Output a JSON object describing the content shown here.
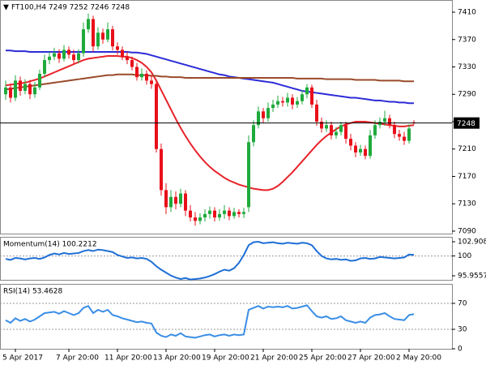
{
  "chart_data": [
    {
      "type": "candlestick",
      "title": "FT100,H4 7249 7252 7246 7248",
      "categories": [
        null,
        null,
        "5 Apr 2017",
        null,
        null,
        null,
        null,
        null,
        null,
        null,
        null,
        null,
        null,
        "7 Apr 20:00",
        null,
        null,
        null,
        null,
        null,
        null,
        null,
        null,
        null,
        "11 Apr 20:00",
        null,
        null,
        null,
        null,
        null,
        null,
        null,
        null,
        null,
        "13 Apr 20:00",
        null,
        null,
        null,
        null,
        null,
        null,
        null,
        null,
        null,
        "19 Apr 20:00",
        null,
        null,
        null,
        null,
        null,
        null,
        null,
        null,
        null,
        "21 Apr 20:00",
        null,
        null,
        null,
        null,
        null,
        null,
        null,
        null,
        null,
        "25 Apr 20:00",
        null,
        null,
        null,
        null,
        null,
        null,
        null,
        null,
        null,
        "27 Apr 20:00",
        null,
        null,
        null,
        null,
        null,
        null,
        null,
        null,
        null,
        "2 May 20:00",
        null
      ],
      "open": [
        7290,
        7300,
        7285,
        7310,
        7295,
        7305,
        7290,
        7300,
        7320,
        7340,
        7345,
        7350,
        7342,
        7355,
        7348,
        7340,
        7350,
        7385,
        7400,
        7360,
        7380,
        7370,
        7385,
        7360,
        7355,
        7345,
        7340,
        7330,
        7315,
        7320,
        7310,
        7305,
        7210,
        7150,
        7125,
        7140,
        7130,
        7145,
        7120,
        7110,
        7105,
        7110,
        7115,
        7120,
        7110,
        7115,
        7120,
        7112,
        7118,
        7115,
        7125,
        7220,
        7245,
        7265,
        7255,
        7270,
        7275,
        7280,
        7278,
        7285,
        7275,
        7280,
        7290,
        7300,
        7275,
        7250,
        7240,
        7245,
        7230,
        7235,
        7245,
        7225,
        7215,
        7205,
        7210,
        7200,
        7230,
        7245,
        7250,
        7255,
        7245,
        7232,
        7228,
        7222,
        7249
      ],
      "high": [
        7310,
        7306,
        7318,
        7316,
        7312,
        7311,
        7308,
        7326,
        7348,
        7352,
        7358,
        7356,
        7362,
        7360,
        7355,
        7356,
        7395,
        7408,
        7405,
        7388,
        7386,
        7395,
        7390,
        7366,
        7360,
        7352,
        7345,
        7336,
        7328,
        7325,
        7318,
        7312,
        7218,
        7160,
        7150,
        7148,
        7152,
        7150,
        7128,
        7118,
        7116,
        7122,
        7126,
        7125,
        7122,
        7128,
        7125,
        7124,
        7122,
        7124,
        7230,
        7252,
        7272,
        7270,
        7278,
        7282,
        7288,
        7286,
        7292,
        7290,
        7286,
        7296,
        7305,
        7304,
        7282,
        7256,
        7252,
        7250,
        7242,
        7250,
        7250,
        7232,
        7220,
        7216,
        7215,
        7238,
        7252,
        7256,
        7266,
        7260,
        7250,
        7238,
        7235,
        7246,
        7252
      ],
      "low": [
        7282,
        7278,
        7280,
        7288,
        7290,
        7283,
        7285,
        7296,
        7315,
        7334,
        7340,
        7336,
        7338,
        7342,
        7334,
        7335,
        7345,
        7380,
        7352,
        7355,
        7364,
        7366,
        7354,
        7348,
        7340,
        7334,
        7325,
        7310,
        7310,
        7304,
        7298,
        7205,
        7142,
        7115,
        7118,
        7122,
        7125,
        7112,
        7104,
        7098,
        7100,
        7104,
        7108,
        7104,
        7105,
        7108,
        7106,
        7108,
        7110,
        7109,
        7118,
        7214,
        7240,
        7248,
        7250,
        7264,
        7270,
        7272,
        7272,
        7268,
        7270,
        7275,
        7284,
        7270,
        7244,
        7234,
        7235,
        7224,
        7225,
        7230,
        7218,
        7208,
        7198,
        7200,
        7195,
        7196,
        7225,
        7240,
        7244,
        7240,
        7226,
        7222,
        7216,
        7218,
        7246
      ],
      "close": [
        7300,
        7285,
        7310,
        7295,
        7305,
        7290,
        7300,
        7320,
        7340,
        7345,
        7350,
        7342,
        7355,
        7348,
        7340,
        7350,
        7385,
        7400,
        7360,
        7380,
        7370,
        7385,
        7360,
        7355,
        7345,
        7340,
        7330,
        7315,
        7320,
        7310,
        7305,
        7210,
        7150,
        7125,
        7140,
        7130,
        7145,
        7120,
        7110,
        7105,
        7110,
        7115,
        7120,
        7110,
        7115,
        7120,
        7112,
        7118,
        7115,
        7118,
        7220,
        7245,
        7265,
        7255,
        7270,
        7275,
        7280,
        7278,
        7285,
        7275,
        7280,
        7290,
        7300,
        7275,
        7250,
        7240,
        7245,
        7230,
        7235,
        7245,
        7225,
        7215,
        7205,
        7210,
        7200,
        7230,
        7245,
        7250,
        7255,
        7245,
        7232,
        7228,
        7222,
        7240,
        7248
      ],
      "up_color": "#1faa3c",
      "down_color": "#e8101a",
      "lines": [
        {
          "color": "#e8232a",
          "values": [
            7303,
            7304,
            7305,
            7306,
            7307,
            7309,
            7311,
            7313,
            7316,
            7319,
            7322,
            7325,
            7328,
            7331,
            7334,
            7337,
            7340,
            7342,
            7343,
            7344,
            7345,
            7346,
            7346,
            7346,
            7345,
            7345,
            7343,
            7340,
            7336,
            7330,
            7322,
            7310,
            7296,
            7282,
            7268,
            7254,
            7241,
            7229,
            7218,
            7208,
            7199,
            7191,
            7184,
            7178,
            7173,
            7168,
            7164,
            7161,
            7158,
            7156,
            7154,
            7152,
            7151,
            7150,
            7150,
            7152,
            7156,
            7162,
            7169,
            7176,
            7184,
            7192,
            7200,
            7208,
            7216,
            7223,
            7229,
            7234,
            7239,
            7243,
            7246,
            7248,
            7250,
            7250,
            7250,
            7249,
            7248,
            7247,
            7246,
            7245,
            7244,
            7243,
            7243,
            7244,
            7245
          ]
        },
        {
          "color": "#2b2bd6",
          "values": [
            7354,
            7354,
            7353,
            7353,
            7353,
            7352,
            7352,
            7352,
            7352,
            7352,
            7352,
            7352,
            7352,
            7352,
            7352,
            7352,
            7352,
            7352,
            7352,
            7352,
            7352,
            7352,
            7352,
            7352,
            7352,
            7352,
            7351,
            7351,
            7350,
            7349,
            7347,
            7345,
            7343,
            7341,
            7339,
            7337,
            7335,
            7333,
            7331,
            7329,
            7327,
            7325,
            7323,
            7321,
            7319,
            7318,
            7316,
            7315,
            7314,
            7313,
            7312,
            7311,
            7310,
            7309,
            7308,
            7307,
            7305,
            7303,
            7301,
            7299,
            7297,
            7295,
            7294,
            7293,
            7292,
            7291,
            7290,
            7289,
            7288,
            7287,
            7286,
            7285,
            7285,
            7284,
            7283,
            7282,
            7281,
            7281,
            7280,
            7279,
            7279,
            7278,
            7278,
            7277,
            7277
          ]
        },
        {
          "color": "#9a4a2a",
          "values": [
            7297,
            7298,
            7299,
            7300,
            7301,
            7302,
            7303,
            7304,
            7305,
            7306,
            7307,
            7308,
            7309,
            7310,
            7311,
            7312,
            7313,
            7314,
            7315,
            7316,
            7317,
            7318,
            7318,
            7319,
            7319,
            7319,
            7319,
            7318,
            7318,
            7318,
            7317,
            7317,
            7316,
            7316,
            7315,
            7315,
            7315,
            7314,
            7314,
            7314,
            7314,
            7314,
            7314,
            7314,
            7314,
            7314,
            7314,
            7314,
            7314,
            7314,
            7314,
            7314,
            7314,
            7314,
            7314,
            7314,
            7314,
            7314,
            7314,
            7314,
            7313,
            7313,
            7313,
            7313,
            7313,
            7313,
            7312,
            7312,
            7312,
            7312,
            7312,
            7312,
            7311,
            7311,
            7311,
            7311,
            7311,
            7310,
            7310,
            7310,
            7310,
            7310,
            7309,
            7309,
            7309
          ]
        }
      ],
      "last_price": 7248,
      "ylim": [
        7086.4,
        7427.8
      ],
      "yticks": [
        7410,
        7370,
        7330,
        7290,
        7250,
        7210,
        7170,
        7130,
        7090
      ]
    },
    {
      "type": "line",
      "title": "Momentum(14) 100.2212",
      "color": "#1f6fd6",
      "values": [
        99.4,
        99.2,
        99.6,
        99.5,
        99.3,
        99.5,
        99.6,
        99.4,
        99.7,
        100.2,
        100.5,
        100.3,
        100.6,
        100.4,
        100.5,
        100.6,
        101.0,
        101.2,
        101.0,
        101.3,
        101.2,
        101.0,
        100.8,
        100.2,
        99.9,
        99.6,
        99.7,
        99.5,
        99.6,
        99.4,
        98.8,
        97.9,
        97.2,
        96.6,
        96.0,
        95.6,
        95.3,
        95.5,
        95.2,
        95.3,
        95.4,
        95.6,
        95.9,
        96.3,
        96.8,
        97.2,
        97.0,
        97.5,
        98.6,
        100.2,
        102.2,
        102.8,
        102.9,
        102.6,
        102.7,
        102.8,
        102.6,
        102.5,
        102.7,
        102.6,
        102.5,
        102.7,
        102.6,
        102.2,
        101.0,
        100.0,
        99.5,
        99.3,
        99.4,
        99.2,
        99.3,
        99.0,
        99.1,
        99.5,
        99.6,
        99.4,
        99.5,
        99.8,
        99.7,
        99.6,
        99.5,
        99.6,
        99.7,
        100.3,
        100.2212
      ],
      "levels": [
        100
      ],
      "ylim": [
        95.13,
        103.9
      ],
      "yticks": [
        102.9083,
        100,
        95.9557
      ]
    },
    {
      "type": "line",
      "title": "RSI(14) 53.4628",
      "color": "#3a8ee6",
      "values": [
        44,
        40,
        47,
        43,
        46,
        42,
        45,
        50,
        55,
        56,
        57,
        54,
        58,
        55,
        52,
        55,
        63,
        66,
        55,
        60,
        57,
        60,
        52,
        50,
        47,
        45,
        43,
        41,
        42,
        40,
        39,
        25,
        20,
        18,
        22,
        20,
        24,
        19,
        18,
        17,
        19,
        21,
        22,
        19,
        21,
        22,
        20,
        22,
        21,
        22,
        60,
        63,
        66,
        62,
        65,
        64,
        65,
        64,
        66,
        62,
        63,
        65,
        67,
        58,
        50,
        48,
        50,
        46,
        47,
        50,
        44,
        42,
        40,
        42,
        40,
        48,
        52,
        53,
        55,
        50,
        46,
        45,
        44,
        52,
        53.4628
      ],
      "levels": [
        30,
        70
      ],
      "ylim": [
        0,
        100
      ],
      "yticks": [
        70,
        30,
        0
      ]
    }
  ]
}
